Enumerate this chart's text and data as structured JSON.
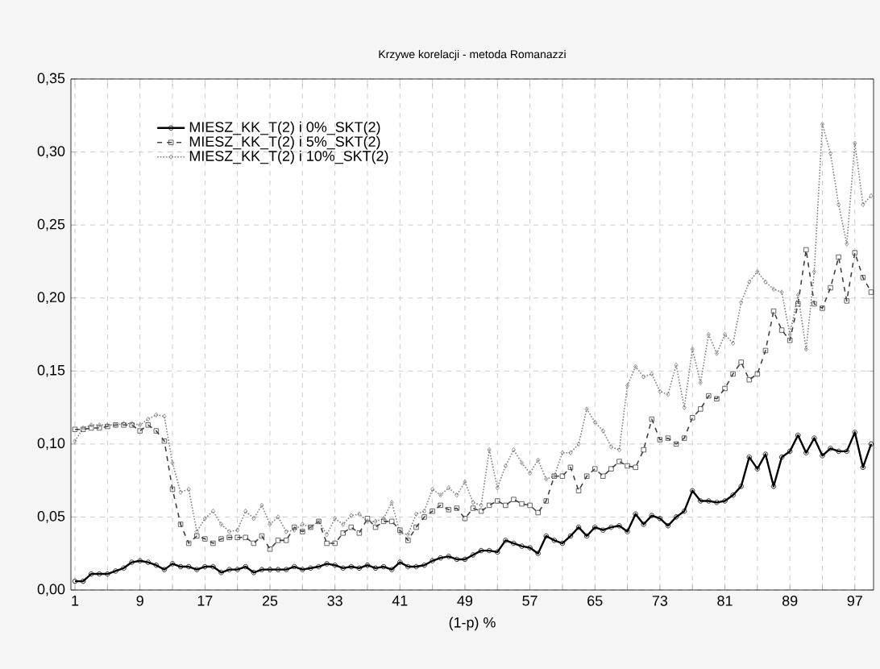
{
  "chart_data": {
    "type": "line",
    "title": "Krzywe korelacji - metoda Romanazzi",
    "xlabel": "(1-p) %",
    "categories": [
      "1",
      null,
      null,
      null,
      null,
      null,
      null,
      null,
      "9",
      null,
      null,
      null,
      null,
      null,
      null,
      null,
      "17",
      null,
      null,
      null,
      null,
      null,
      null,
      null,
      "25",
      null,
      null,
      null,
      null,
      null,
      null,
      null,
      "33",
      null,
      null,
      null,
      null,
      null,
      null,
      null,
      "41",
      null,
      null,
      null,
      null,
      null,
      null,
      null,
      "49",
      null,
      null,
      null,
      null,
      null,
      null,
      null,
      "57",
      null,
      null,
      null,
      null,
      null,
      null,
      null,
      "65",
      null,
      null,
      null,
      null,
      null,
      null,
      null,
      "73",
      null,
      null,
      null,
      null,
      null,
      null,
      null,
      "81",
      null,
      null,
      null,
      null,
      null,
      null,
      null,
      "89",
      null,
      null,
      null,
      null,
      null,
      null,
      null,
      "97",
      null,
      null
    ],
    "ylim": [
      0,
      0.35
    ],
    "yticks": [
      {
        "value": 0,
        "label": "0,00"
      },
      {
        "value": 0.05,
        "label": "0,05"
      },
      {
        "value": 0.1,
        "label": "0,10"
      },
      {
        "value": 0.15,
        "label": "0,15"
      },
      {
        "value": 0.2,
        "label": "0,20"
      },
      {
        "value": 0.25,
        "label": "0,25"
      },
      {
        "value": 0.3,
        "label": "0,30"
      },
      {
        "value": 0.35,
        "label": "0,35"
      }
    ],
    "grid": true,
    "legend": "top left",
    "series": [
      {
        "name": "MIESZ_KK_T(2) i 0%_SKT(2)",
        "color": "#000000",
        "marker": "circle",
        "line_style": "solid",
        "values": [
          0.006,
          0.006,
          0.011,
          0.011,
          0.011,
          0.013,
          0.015,
          0.019,
          0.02,
          0.019,
          0.017,
          0.014,
          0.018,
          0.016,
          0.016,
          0.014,
          0.016,
          0.016,
          0.012,
          0.014,
          0.014,
          0.016,
          0.012,
          0.014,
          0.014,
          0.014,
          0.014,
          0.016,
          0.014,
          0.015,
          0.016,
          0.018,
          0.017,
          0.015,
          0.016,
          0.015,
          0.017,
          0.015,
          0.016,
          0.014,
          0.019,
          0.016,
          0.016,
          0.017,
          0.02,
          0.022,
          0.023,
          0.021,
          0.021,
          0.024,
          0.027,
          0.027,
          0.026,
          0.034,
          0.032,
          0.03,
          0.029,
          0.025,
          0.037,
          0.034,
          0.032,
          0.037,
          0.043,
          0.037,
          0.043,
          0.041,
          0.043,
          0.044,
          0.04,
          0.052,
          0.045,
          0.051,
          0.049,
          0.044,
          0.05,
          0.054,
          0.068,
          0.061,
          0.061,
          0.06,
          0.061,
          0.065,
          0.071,
          0.091,
          0.083,
          0.093,
          0.071,
          0.091,
          0.095,
          0.106,
          0.094,
          0.104,
          0.092,
          0.097,
          0.095,
          0.095,
          0.108,
          0.084,
          0.1
        ]
      },
      {
        "name": "MIESZ_KK_T(2) i 5%_SKT(2)",
        "color": "#404040",
        "marker": "square",
        "line_style": "dashed",
        "values": [
          0.11,
          0.11,
          0.111,
          0.111,
          0.112,
          0.113,
          0.113,
          0.113,
          0.109,
          0.113,
          0.109,
          0.102,
          0.069,
          0.045,
          0.032,
          0.037,
          0.035,
          0.032,
          0.035,
          0.036,
          0.036,
          0.036,
          0.032,
          0.037,
          0.028,
          0.034,
          0.034,
          0.043,
          0.04,
          0.043,
          0.047,
          0.032,
          0.032,
          0.039,
          0.043,
          0.039,
          0.049,
          0.043,
          0.047,
          0.047,
          0.041,
          0.034,
          0.043,
          0.05,
          0.054,
          0.058,
          0.055,
          0.056,
          0.049,
          0.056,
          0.054,
          0.058,
          0.061,
          0.058,
          0.062,
          0.059,
          0.058,
          0.053,
          0.061,
          0.078,
          0.078,
          0.084,
          0.068,
          0.078,
          0.083,
          0.078,
          0.083,
          0.088,
          0.085,
          0.084,
          0.096,
          0.117,
          0.103,
          0.104,
          0.1,
          0.104,
          0.118,
          0.124,
          0.133,
          0.131,
          0.138,
          0.148,
          0.156,
          0.144,
          0.148,
          0.164,
          0.191,
          0.178,
          0.171,
          0.196,
          0.233,
          0.196,
          0.193,
          0.207,
          0.228,
          0.198,
          0.231,
          0.214,
          0.204
        ]
      },
      {
        "name": "MIESZ_KK_T(2) i 10%_SKT(2)",
        "color": "#808080",
        "marker": "diamond",
        "line_style": "dotted",
        "values": [
          0.102,
          0.111,
          0.113,
          0.113,
          0.113,
          0.113,
          0.114,
          0.114,
          0.113,
          0.117,
          0.12,
          0.119,
          0.087,
          0.067,
          0.069,
          0.04,
          0.049,
          0.054,
          0.045,
          0.04,
          0.041,
          0.054,
          0.049,
          0.058,
          0.045,
          0.05,
          0.04,
          0.041,
          0.045,
          0.043,
          0.047,
          0.038,
          0.049,
          0.045,
          0.051,
          0.052,
          0.047,
          0.047,
          0.049,
          0.06,
          0.039,
          0.038,
          0.052,
          0.054,
          0.069,
          0.065,
          0.07,
          0.065,
          0.074,
          0.06,
          0.058,
          0.096,
          0.07,
          0.085,
          0.096,
          0.087,
          0.08,
          0.089,
          0.076,
          0.078,
          0.094,
          0.094,
          0.1,
          0.124,
          0.115,
          0.109,
          0.098,
          0.096,
          0.14,
          0.153,
          0.146,
          0.148,
          0.136,
          0.134,
          0.154,
          0.125,
          0.165,
          0.142,
          0.175,
          0.162,
          0.175,
          0.169,
          0.197,
          0.211,
          0.218,
          0.211,
          0.206,
          0.204,
          0.175,
          0.202,
          0.165,
          0.218,
          0.319,
          0.299,
          0.264,
          0.237,
          0.306,
          0.264,
          0.27
        ]
      }
    ]
  }
}
